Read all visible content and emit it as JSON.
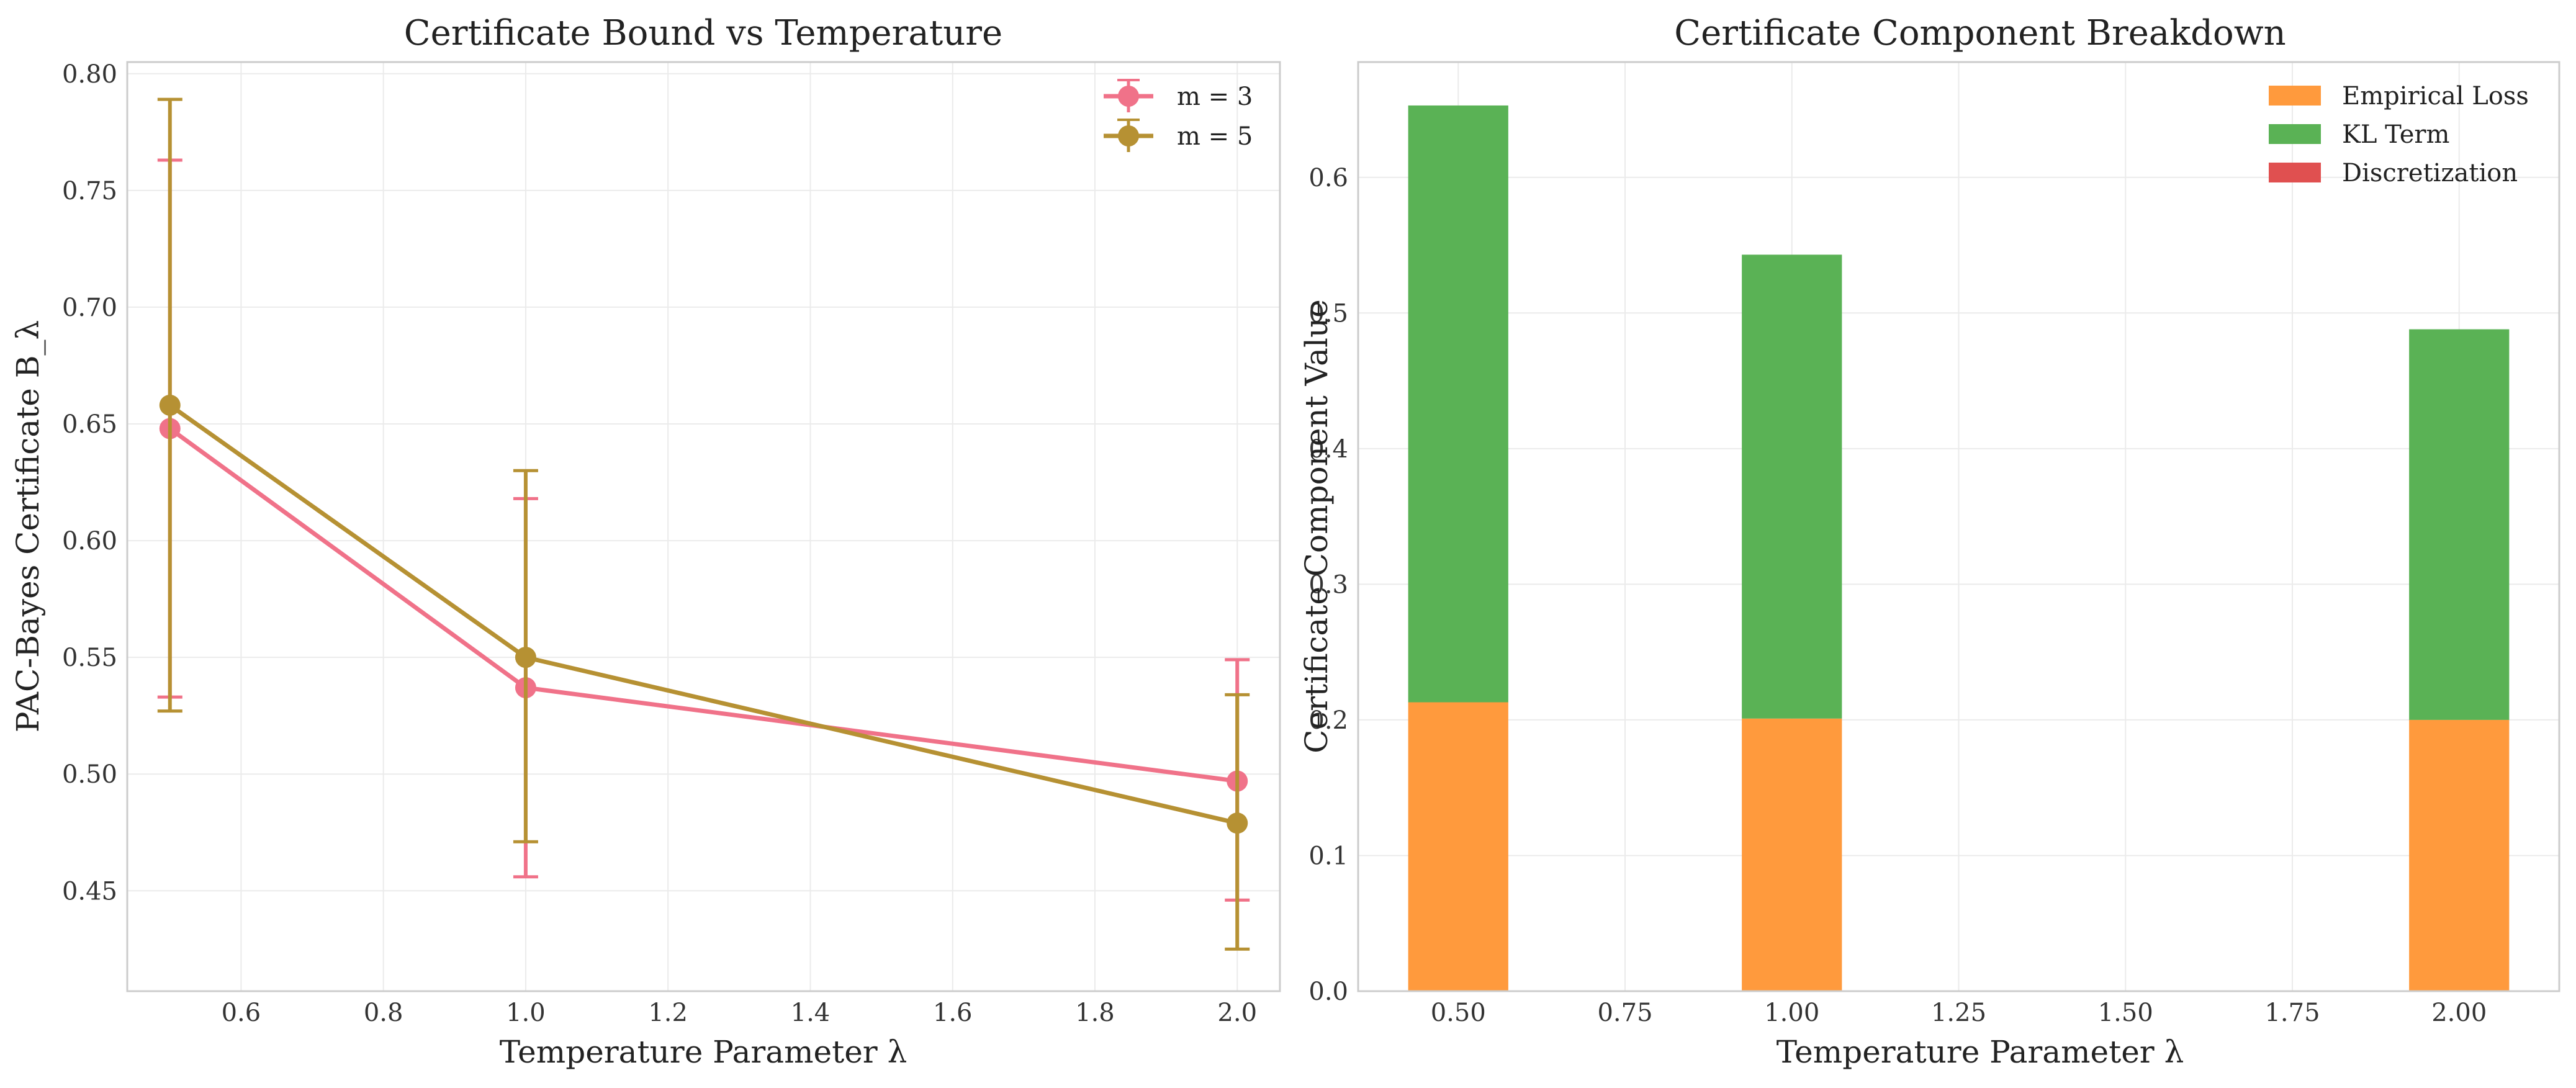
{
  "figure": {
    "background": "#ffffff",
    "grid_color": "#ebebeb",
    "frame_color": "#cccccc"
  },
  "chart_data": [
    {
      "type": "line",
      "title": "Certificate Bound vs Temperature",
      "xlabel": "Temperature Parameter λ",
      "ylabel": "PAC-Bayes Certificate B_λ",
      "xlim": [
        0.44,
        2.06
      ],
      "ylim": [
        0.407,
        0.805
      ],
      "x_ticks": [
        0.6,
        0.8,
        1.0,
        1.2,
        1.4,
        1.6,
        1.8,
        2.0
      ],
      "x_tick_labels": [
        "0.6",
        "0.8",
        "1.0",
        "1.2",
        "1.4",
        "1.6",
        "1.8",
        "2.0"
      ],
      "y_ticks": [
        0.45,
        0.5,
        0.55,
        0.6,
        0.65,
        0.7,
        0.75,
        0.8
      ],
      "y_tick_labels": [
        "0.45",
        "0.50",
        "0.55",
        "0.60",
        "0.65",
        "0.70",
        "0.75",
        "0.80"
      ],
      "grid": true,
      "legend_position": "top-right",
      "series": [
        {
          "name": "m = 3",
          "color": "#f07289",
          "x": [
            0.5,
            1.0,
            2.0
          ],
          "y": [
            0.648,
            0.537,
            0.497
          ],
          "err_low": [
            0.533,
            0.456,
            0.446
          ],
          "err_high": [
            0.763,
            0.618,
            0.549
          ]
        },
        {
          "name": "m = 5",
          "color": "#b69133",
          "x": [
            0.5,
            1.0,
            2.0
          ],
          "y": [
            0.658,
            0.55,
            0.479
          ],
          "err_low": [
            0.527,
            0.471,
            0.425
          ],
          "err_high": [
            0.789,
            0.63,
            0.534
          ]
        }
      ]
    },
    {
      "type": "bar",
      "stacked": true,
      "title": "Certificate Component Breakdown",
      "xlabel": "Temperature Parameter λ",
      "ylabel": "Certificate Component Value",
      "xlim": [
        0.35,
        2.15
      ],
      "ylim": [
        0.0,
        0.685
      ],
      "x_ticks": [
        0.5,
        0.75,
        1.0,
        1.25,
        1.5,
        1.75,
        2.0
      ],
      "x_tick_labels": [
        "0.50",
        "0.75",
        "1.00",
        "1.25",
        "1.50",
        "1.75",
        "2.00"
      ],
      "y_ticks": [
        0.0,
        0.1,
        0.2,
        0.3,
        0.4,
        0.5,
        0.6
      ],
      "y_tick_labels": [
        "0.0",
        "0.1",
        "0.2",
        "0.3",
        "0.4",
        "0.5",
        "0.6"
      ],
      "bar_width": 0.15,
      "grid": true,
      "legend_position": "top-right",
      "x": [
        0.5,
        1.0,
        2.0
      ],
      "series": [
        {
          "name": "Empirical Loss",
          "color": "#ff9a3d",
          "values": [
            0.213,
            0.201,
            0.2
          ]
        },
        {
          "name": "KL Term",
          "color": "#5ab255",
          "values": [
            0.44,
            0.342,
            0.288
          ]
        },
        {
          "name": "Discretization",
          "color": "#e05050",
          "values": [
            0.0,
            0.0,
            0.0
          ]
        }
      ]
    }
  ]
}
